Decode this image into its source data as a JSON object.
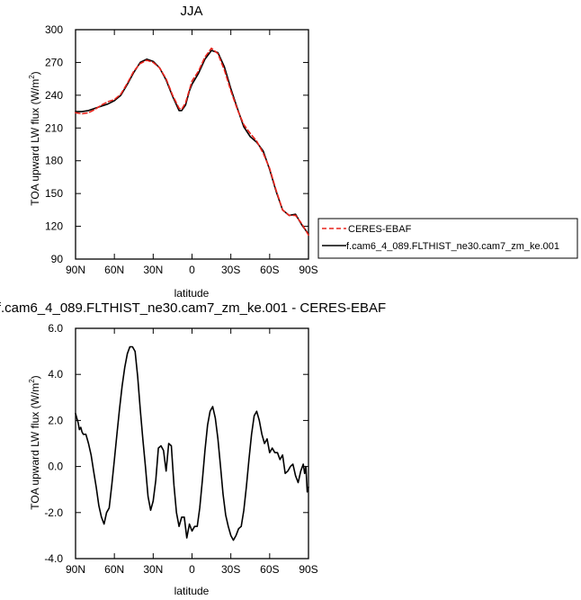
{
  "chart_data": [
    {
      "type": "line",
      "title": "JJA",
      "xlabel": "latitude",
      "ylabel": "TOA upward LW flux (W/m²)",
      "xlim": [
        -90,
        90
      ],
      "ylim": [
        90,
        300
      ],
      "x_ticks": [
        -90,
        -60,
        -30,
        0,
        30,
        60,
        90
      ],
      "x_tick_labels": [
        "90N",
        "60N",
        "30N",
        "0",
        "30S",
        "60S",
        "90S"
      ],
      "y_ticks": [
        90,
        120,
        150,
        180,
        210,
        240,
        270,
        300
      ],
      "y_tick_labels": [
        "90",
        "120",
        "150",
        "180",
        "210",
        "240",
        "270",
        "300"
      ],
      "grid": false,
      "legend_position": "right",
      "series": [
        {
          "name": "CERES-EBAF",
          "color": "#e8231b",
          "style": "dashed",
          "x": [
            -90,
            -85,
            -80,
            -75,
            -70,
            -65,
            -60,
            -55,
            -50,
            -45,
            -40,
            -35,
            -30,
            -25,
            -20,
            -15,
            -10,
            -8,
            -5,
            -2,
            0,
            5,
            10,
            15,
            20,
            25,
            30,
            35,
            40,
            45,
            50,
            55,
            60,
            65,
            70,
            75,
            80,
            85,
            90
          ],
          "y": [
            224,
            223,
            224,
            227,
            231,
            234,
            236,
            241,
            251,
            262,
            269,
            272,
            270,
            265,
            255,
            240,
            228,
            227,
            233,
            245,
            253,
            262,
            275,
            283,
            278,
            263,
            244,
            227,
            213,
            205,
            198,
            187,
            173,
            153,
            135,
            130,
            130,
            122,
            112
          ]
        },
        {
          "name": "f.cam6_4_089.FLTHIST_ne30.cam7_zm_ke.001",
          "color": "#000000",
          "style": "solid",
          "x": [
            -90,
            -85,
            -80,
            -75,
            -70,
            -65,
            -60,
            -55,
            -50,
            -45,
            -40,
            -35,
            -30,
            -25,
            -20,
            -15,
            -10,
            -8,
            -5,
            -2,
            0,
            5,
            10,
            15,
            20,
            25,
            30,
            35,
            40,
            45,
            50,
            55,
            60,
            65,
            70,
            75,
            80,
            85,
            90
          ],
          "y": [
            225,
            225,
            226,
            228,
            230,
            232,
            235,
            240,
            250,
            261,
            270,
            273,
            271,
            265,
            254,
            239,
            226,
            226,
            231,
            244,
            250,
            260,
            273,
            281,
            279,
            266,
            246,
            228,
            211,
            202,
            197,
            189,
            172,
            152,
            135,
            130,
            131,
            121,
            113
          ]
        }
      ]
    },
    {
      "type": "line",
      "title": "f.cam6_4_089.FLTHIST_ne30.cam7_zm_ke.001 - CERES-EBAF",
      "xlabel": "latitude",
      "ylabel": "TOA upward LW flux (W/m²)",
      "xlim": [
        -90,
        90
      ],
      "ylim": [
        -4.0,
        6.0
      ],
      "x_ticks": [
        -90,
        -60,
        -30,
        0,
        30,
        60,
        90
      ],
      "x_tick_labels": [
        "90N",
        "60N",
        "30N",
        "0",
        "30S",
        "60S",
        "90S"
      ],
      "y_ticks": [
        -4.0,
        -2.0,
        0.0,
        2.0,
        4.0,
        6.0
      ],
      "y_tick_labels": [
        "-4.0",
        "-2.0",
        "0.0",
        "2.0",
        "4.0",
        "6.0"
      ],
      "grid": false,
      "series": [
        {
          "color": "#000000",
          "style": "solid",
          "x": [
            -90,
            -89,
            -88,
            -87,
            -86,
            -85,
            -84,
            -82,
            -80,
            -78,
            -76,
            -74,
            -72,
            -70,
            -68,
            -66,
            -64,
            -62,
            -60,
            -58,
            -56,
            -54,
            -52,
            -50,
            -48,
            -46,
            -44,
            -42,
            -40,
            -38,
            -36,
            -34,
            -32,
            -30,
            -28,
            -26,
            -24,
            -22,
            -20,
            -18,
            -16,
            -14,
            -12,
            -10,
            -8,
            -6,
            -4,
            -2,
            0,
            2,
            4,
            6,
            8,
            10,
            12,
            14,
            16,
            18,
            20,
            22,
            24,
            26,
            28,
            30,
            32,
            34,
            36,
            38,
            40,
            42,
            44,
            46,
            48,
            50,
            52,
            54,
            56,
            58,
            60,
            62,
            64,
            66,
            68,
            70,
            72,
            74,
            76,
            78,
            80,
            82,
            84,
            86,
            87,
            88,
            89,
            90
          ],
          "y": [
            2.3,
            2.1,
            1.9,
            1.6,
            1.7,
            1.5,
            1.4,
            1.4,
            1.0,
            0.5,
            -0.2,
            -0.9,
            -1.7,
            -2.2,
            -2.5,
            -2.0,
            -1.8,
            -0.8,
            0.3,
            1.4,
            2.5,
            3.5,
            4.3,
            4.9,
            5.2,
            5.2,
            5.0,
            3.9,
            2.5,
            1.2,
            0.0,
            -1.3,
            -1.9,
            -1.5,
            -0.6,
            0.8,
            0.9,
            0.7,
            -0.2,
            1.0,
            0.9,
            -0.8,
            -2.0,
            -2.6,
            -2.2,
            -2.2,
            -3.1,
            -2.5,
            -2.8,
            -2.6,
            -2.6,
            -1.8,
            -0.6,
            0.7,
            1.8,
            2.4,
            2.6,
            2.1,
            1.2,
            0.0,
            -1.2,
            -2.1,
            -2.6,
            -3.0,
            -3.2,
            -3.0,
            -2.7,
            -2.6,
            -1.9,
            -0.9,
            0.3,
            1.4,
            2.2,
            2.4,
            2.0,
            1.4,
            1.0,
            1.2,
            0.6,
            0.8,
            0.6,
            0.6,
            0.3,
            0.5,
            -0.3,
            -0.2,
            0.0,
            0.1,
            -0.4,
            -0.7,
            -0.2,
            0.1,
            -0.3,
            0.0,
            -1.1,
            -0.9
          ]
        }
      ]
    }
  ]
}
